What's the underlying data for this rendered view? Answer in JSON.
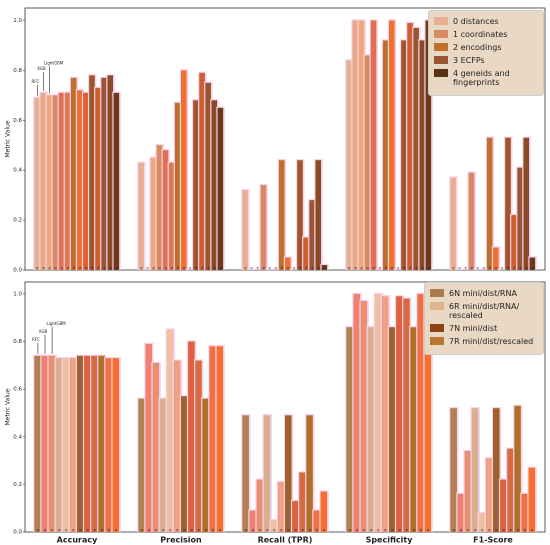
{
  "chart_data": [
    {
      "type": "bar",
      "ylabel": "Metric Value",
      "ylim": [
        0,
        1.05
      ],
      "yticks": [
        {
          "value": 0,
          "label": "0.0"
        },
        0.2,
        0.4,
        0.6,
        0.8,
        {
          "value": 1,
          "label": "1.0"
        }
      ],
      "annotations": [
        "LightGBM",
        "XGB",
        "RFC"
      ],
      "legend": [
        {
          "name": "0 distances",
          "color": "#e8b090"
        },
        {
          "name": "1 coordinates",
          "color": "#d88a60"
        },
        {
          "name": "2 encodings",
          "color": "#c0702a"
        },
        {
          "name": "3 ECFPs",
          "color": "#9a5530"
        },
        {
          "name": "4 geneids and fingerprints",
          "color": "#5a3310"
        }
      ],
      "series": [
        {
          "color": "#e8b090",
          "values": [
            0.69,
            0.43,
            0.32,
            0.84,
            0.37
          ]
        },
        {
          "color": "#eaa888",
          "values": [
            0.71,
            0,
            0,
            1.0,
            0
          ]
        },
        {
          "color": "#f0a878",
          "values": [
            0.7,
            0.45,
            0,
            1.0,
            0
          ]
        },
        {
          "color": "#d88a60",
          "values": [
            0.7,
            0.5,
            0.34,
            0.86,
            0.39
          ]
        },
        {
          "color": "#e07050",
          "values": [
            0.71,
            0.48,
            0,
            1.0,
            0
          ]
        },
        {
          "color": "#e07850",
          "values": [
            0.71,
            0.43,
            0,
            0,
            0
          ]
        },
        {
          "color": "#c0702a",
          "values": [
            0.77,
            0.67,
            0.44,
            0.92,
            0.53
          ]
        },
        {
          "color": "#f07030",
          "values": [
            0.72,
            0.8,
            0.05,
            1.0,
            0.09
          ]
        },
        {
          "color": "#e06030",
          "values": [
            0.71,
            0,
            0,
            0,
            0
          ]
        },
        {
          "color": "#a0552a",
          "values": [
            0.78,
            0.68,
            0.44,
            0.92,
            0.53
          ]
        },
        {
          "color": "#d06030",
          "values": [
            0.73,
            0.79,
            0.13,
            0.99,
            0.22
          ]
        },
        {
          "color": "#9a5530",
          "values": [
            0.77,
            0.75,
            0.28,
            0.97,
            0.41
          ]
        },
        {
          "color": "#8a4a25",
          "values": [
            0.78,
            0.68,
            0.44,
            0.92,
            0.53
          ]
        },
        {
          "color": "#6a3a1a",
          "values": [
            0.71,
            0.65,
            0.02,
            1.0,
            0.05
          ]
        }
      ]
    },
    {
      "type": "bar",
      "ylabel": "Metric Value",
      "categories": [
        "Accuracy",
        "Precision",
        "Recall (TPR)",
        "Specificity",
        "F1-Score"
      ],
      "ylim": [
        0,
        1.05
      ],
      "yticks": [
        {
          "value": 0,
          "label": "0.0"
        },
        0.2,
        0.4,
        0.6,
        0.8,
        {
          "value": 1,
          "label": "1.0"
        }
      ],
      "annotations": [
        "LightGBM",
        "XGB",
        "RFC"
      ],
      "legend": [
        {
          "name": "6N mini/dist/RNA",
          "color": "#a97c50"
        },
        {
          "name": "6R mini/dist/RNA/ rescaled",
          "color": "#ddb48b"
        },
        {
          "name": "7N mini/dist",
          "color": "#8b4513"
        },
        {
          "name": "7R mini/dist/rescaled",
          "color": "#b8762e"
        }
      ],
      "series": [
        {
          "color": "#b08050",
          "values": [
            0.74,
            0.56,
            0.49,
            0.86,
            0.52
          ]
        },
        {
          "color": "#f08070",
          "values": [
            0.74,
            0.79,
            0.09,
            1.0,
            0.16
          ]
        },
        {
          "color": "#e89070",
          "values": [
            0.74,
            0.71,
            0.22,
            0.97,
            0.34
          ]
        },
        {
          "color": "#d8b090",
          "values": [
            0.73,
            0.56,
            0.49,
            0.86,
            0.52
          ]
        },
        {
          "color": "#f0c0a0",
          "values": [
            0.73,
            0.85,
            0.05,
            1.0,
            0.08
          ]
        },
        {
          "color": "#f0a080",
          "values": [
            0.73,
            0.72,
            0.21,
            0.99,
            0.31
          ]
        },
        {
          "color": "#a0602a",
          "values": [
            0.74,
            0.57,
            0.49,
            0.86,
            0.52
          ]
        },
        {
          "color": "#e06040",
          "values": [
            0.74,
            0.8,
            0.13,
            0.99,
            0.22
          ]
        },
        {
          "color": "#d86a40",
          "values": [
            0.74,
            0.72,
            0.25,
            0.98,
            0.35
          ]
        },
        {
          "color": "#b0702a",
          "values": [
            0.74,
            0.56,
            0.49,
            0.86,
            0.53
          ]
        },
        {
          "color": "#f07040",
          "values": [
            0.73,
            0.78,
            0.09,
            1.0,
            0.16
          ]
        },
        {
          "color": "#f87030",
          "values": [
            0.73,
            0.78,
            0.17,
            1.0,
            0.27
          ]
        }
      ]
    }
  ]
}
